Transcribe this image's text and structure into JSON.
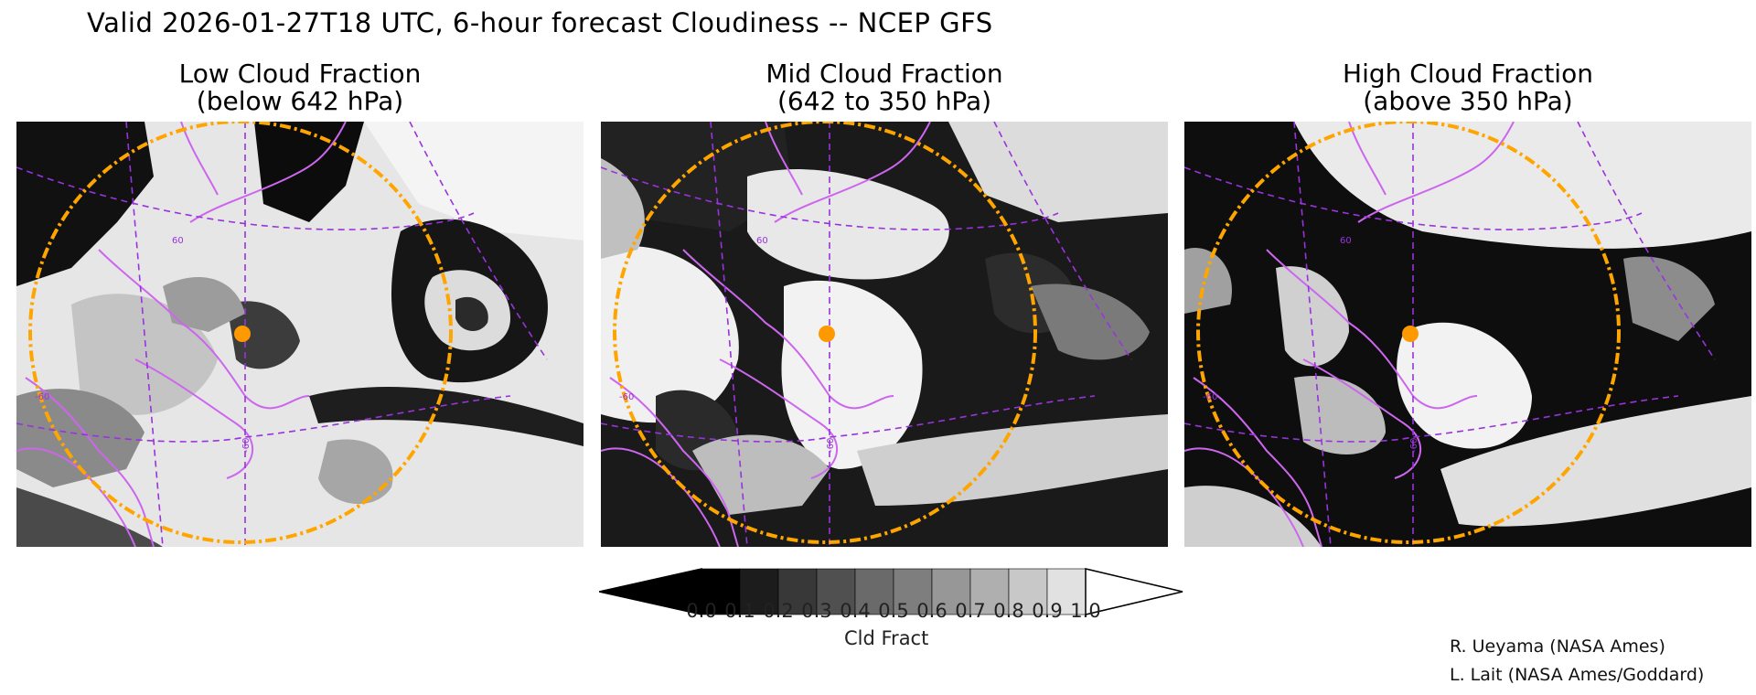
{
  "header": {
    "title": "Valid 2026-01-27T18 UTC, 6-hour forecast Cloudiness -- NCEP GFS"
  },
  "panels": [
    {
      "id": "low",
      "title_line1": "Low Cloud Fraction",
      "title_line2": "(below 642 hPa)"
    },
    {
      "id": "mid",
      "title_line1": "Mid Cloud Fraction",
      "title_line2": "(642 to 350 hPa)"
    },
    {
      "id": "high",
      "title_line1": "High Cloud Fraction",
      "title_line2": "(above 350 hPa)"
    }
  ],
  "map_labels": {
    "lat": "60",
    "lat_left": "-60",
    "lon": "-60"
  },
  "colorbar": {
    "tick_labels": [
      "0.0",
      "0.1",
      "0.2",
      "0.3",
      "0.4",
      "0.5",
      "0.6",
      "0.7",
      "0.8",
      "0.9",
      "1.0"
    ],
    "shades": [
      "#000000",
      "#1c1c1c",
      "#383838",
      "#505050",
      "#6a6a6a",
      "#7e7e7e",
      "#979797",
      "#afafaf",
      "#c8c8c8",
      "#e1e1e1"
    ],
    "label": "Cld Fract"
  },
  "credits": [
    "R. Ueyama (NASA Ames)",
    "L. Lait (NASA Ames/Goddard)"
  ],
  "colors": {
    "coastline": "#cc66ee",
    "gridline": "#9933dd",
    "range_ring": "#ffa500",
    "site_marker": "#ff9900"
  }
}
